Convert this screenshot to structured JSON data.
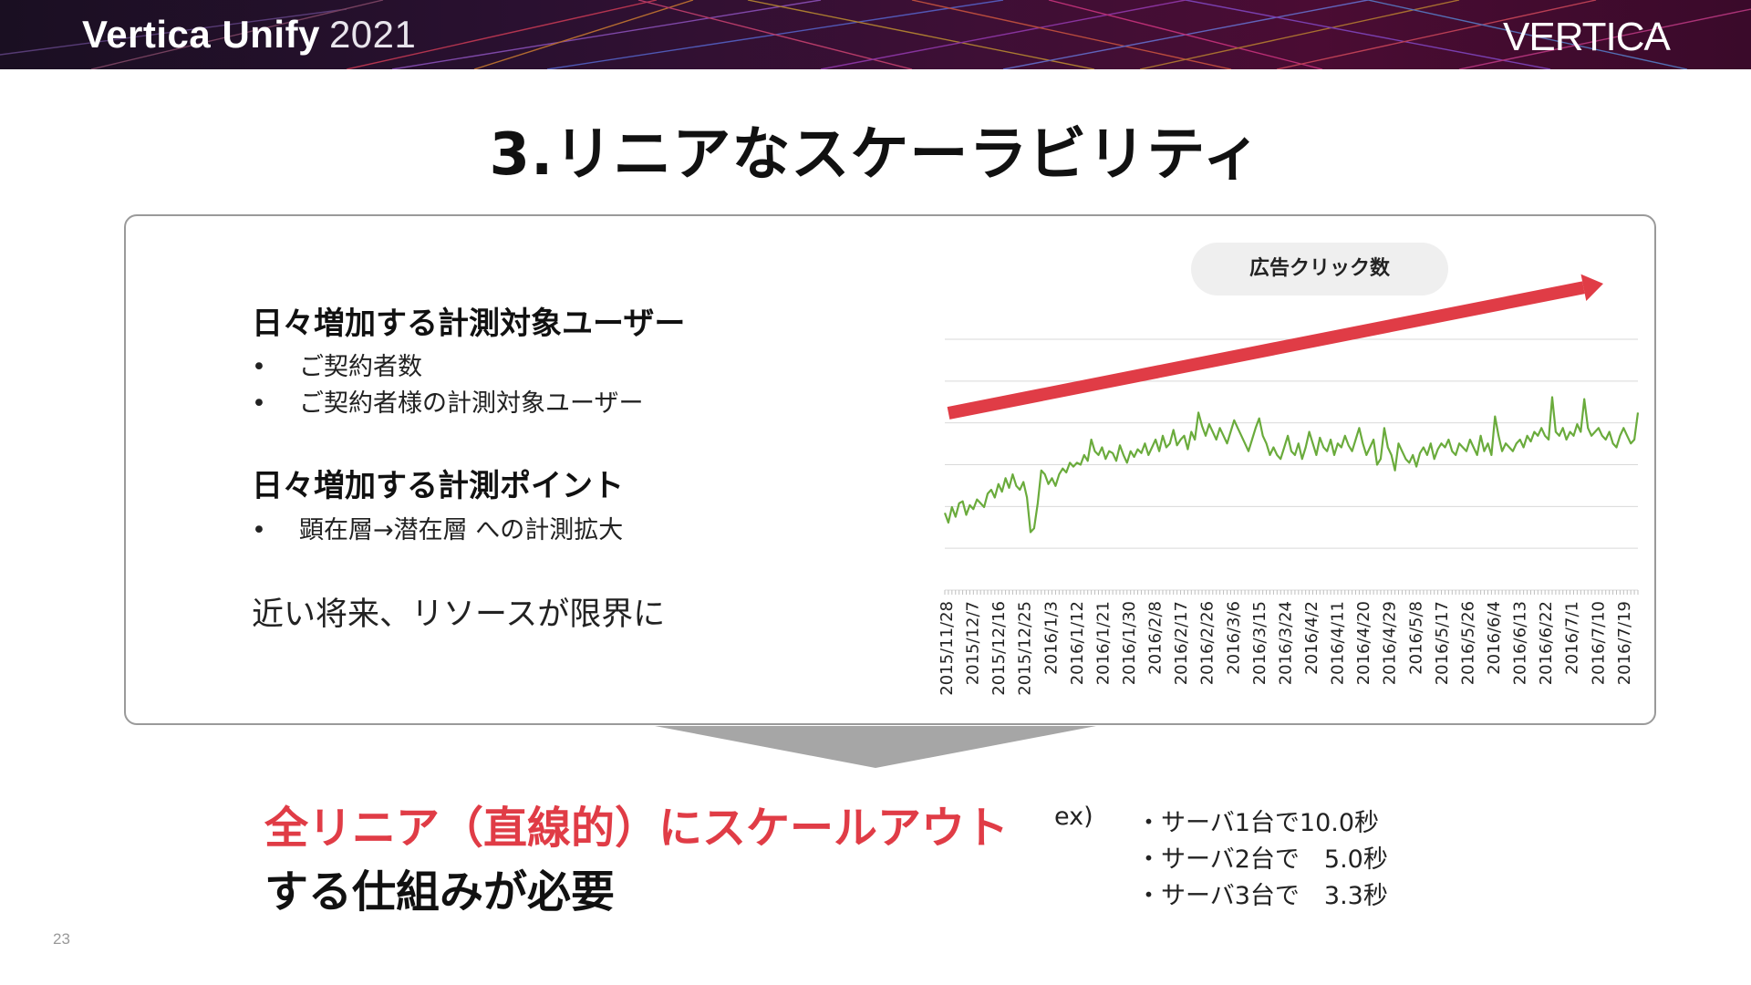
{
  "header": {
    "brand": "Vertica Unify",
    "year": "2021",
    "logo": "VERTICA"
  },
  "title": "3.リニアなスケーラビリティ",
  "section1": {
    "heading": "日々増加する計測対象ユーザー",
    "bullets": [
      "ご契約者数",
      "ご契約者様の計測対象ユーザー"
    ]
  },
  "section2": {
    "heading": "日々増加する計測ポイント",
    "bullets": [
      "顕在層→潜在層 への計測拡大"
    ]
  },
  "note": "近い将来、リソースが限界に",
  "bullet_char": "•",
  "chart_data": {
    "type": "line",
    "title": "広告クリック数",
    "x_tick_labels": [
      "2015/11/28",
      "2015/12/7",
      "2015/12/16",
      "2015/12/25",
      "2016/1/3",
      "2016/1/12",
      "2016/1/21",
      "2016/1/30",
      "2016/2/8",
      "2016/2/17",
      "2016/2/26",
      "2016/3/6",
      "2016/3/15",
      "2016/3/24",
      "2016/4/2",
      "2016/4/11",
      "2016/4/20",
      "2016/4/29",
      "2016/5/8",
      "2016/5/17",
      "2016/5/26",
      "2016/6/4",
      "2016/6/13",
      "2016/6/22",
      "2016/7/1",
      "2016/7/10",
      "2016/7/19"
    ],
    "y_gridlines": 7,
    "grid": true,
    "series_color": "#6aab3c",
    "trend_arrow_color": "#e03c46",
    "values": [
      0.4,
      0.35,
      0.43,
      0.38,
      0.45,
      0.46,
      0.39,
      0.44,
      0.42,
      0.47,
      0.45,
      0.43,
      0.5,
      0.52,
      0.48,
      0.55,
      0.51,
      0.58,
      0.53,
      0.6,
      0.54,
      0.52,
      0.56,
      0.48,
      0.3,
      0.32,
      0.45,
      0.62,
      0.6,
      0.55,
      0.58,
      0.54,
      0.6,
      0.63,
      0.61,
      0.66,
      0.64,
      0.66,
      0.65,
      0.7,
      0.67,
      0.78,
      0.72,
      0.7,
      0.74,
      0.68,
      0.72,
      0.71,
      0.67,
      0.75,
      0.7,
      0.66,
      0.72,
      0.69,
      0.73,
      0.71,
      0.76,
      0.7,
      0.74,
      0.78,
      0.72,
      0.8,
      0.74,
      0.76,
      0.83,
      0.75,
      0.78,
      0.8,
      0.73,
      0.82,
      0.78,
      0.92,
      0.85,
      0.8,
      0.86,
      0.82,
      0.78,
      0.84,
      0.8,
      0.76,
      0.82,
      0.88,
      0.84,
      0.8,
      0.76,
      0.72,
      0.78,
      0.84,
      0.89,
      0.8,
      0.76,
      0.7,
      0.74,
      0.7,
      0.68,
      0.74,
      0.8,
      0.72,
      0.7,
      0.76,
      0.68,
      0.74,
      0.82,
      0.76,
      0.7,
      0.79,
      0.74,
      0.72,
      0.78,
      0.7,
      0.76,
      0.74,
      0.8,
      0.75,
      0.72,
      0.78,
      0.84,
      0.76,
      0.7,
      0.74,
      0.78,
      0.65,
      0.68,
      0.84,
      0.74,
      0.7,
      0.62,
      0.76,
      0.72,
      0.68,
      0.66,
      0.7,
      0.64,
      0.71,
      0.74,
      0.7,
      0.76,
      0.68,
      0.73,
      0.76,
      0.74,
      0.78,
      0.72,
      0.7,
      0.76,
      0.74,
      0.72,
      0.78,
      0.74,
      0.7,
      0.8,
      0.72,
      0.76,
      0.7,
      0.9,
      0.8,
      0.72,
      0.76,
      0.74,
      0.72,
      0.76,
      0.78,
      0.74,
      0.8,
      0.77,
      0.82,
      0.8,
      0.84,
      0.8,
      0.78,
      1.0,
      0.82,
      0.8,
      0.84,
      0.78,
      0.82,
      0.8,
      0.86,
      0.82,
      0.99,
      0.84,
      0.8,
      0.82,
      0.84,
      0.8,
      0.78,
      0.82,
      0.76,
      0.74,
      0.8,
      0.84,
      0.8,
      0.76,
      0.78,
      0.92
    ]
  },
  "conclusion": {
    "line1": "全リニア（直線的）にスケールアウト",
    "line2": "する仕組みが必要",
    "ex_label": "ex)",
    "examples": [
      "・サーバ1台で10.0秒",
      "・サーバ2台で　5.0秒",
      "・サーバ3台で　3.3秒"
    ]
  },
  "page_number": "23",
  "colors": {
    "accent_red": "#e03c46",
    "box_border": "#9a9a9a",
    "down_arrow": "#a6a6a6"
  }
}
